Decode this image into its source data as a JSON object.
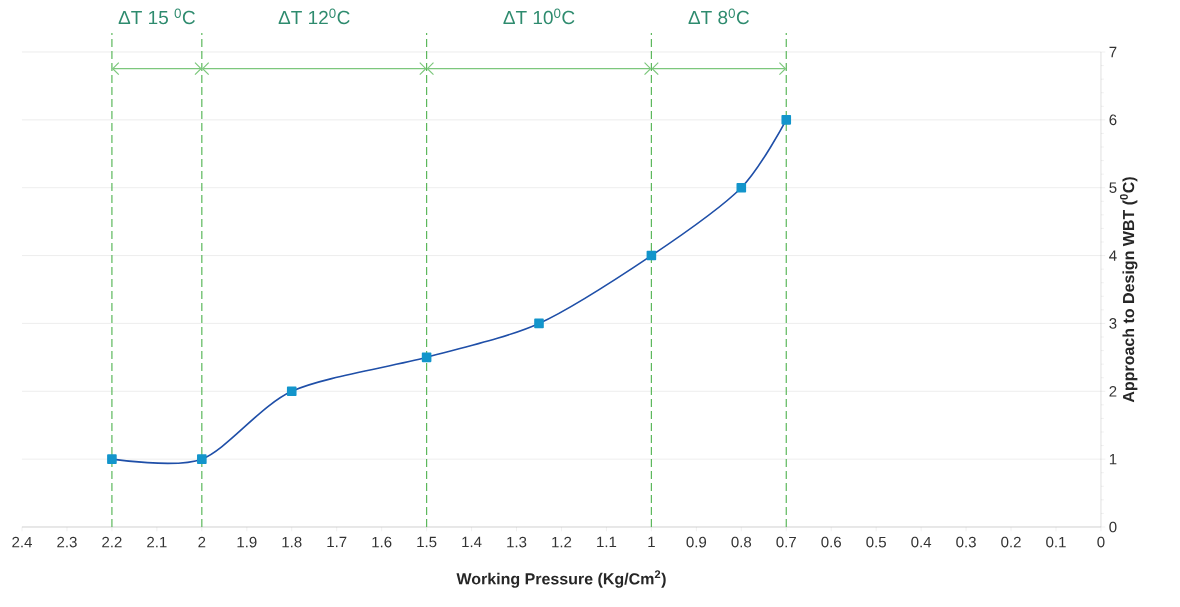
{
  "chart_data": {
    "type": "line",
    "xlabel": "Working Pressure (Kg/Cm$^{2}$)",
    "ylabel": "Approach to Design WBT ($^{0}$C)",
    "series": [
      {
        "x": [
          2.2,
          2.0,
          1.8,
          1.5,
          1.25,
          1.0,
          0.8,
          0.7
        ],
        "values": [
          1,
          1,
          2,
          2.5,
          3,
          4,
          5,
          6
        ],
        "color": "#1f4fa8"
      }
    ],
    "xlim": [
      2.4,
      0
    ],
    "xticks": [
      2.4,
      2.3,
      2.2,
      2.1,
      2,
      1.9,
      1.8,
      1.7,
      1.6,
      1.5,
      1.4,
      1.3,
      1.2,
      1.1,
      1,
      0.9,
      0.8,
      0.7,
      0.6,
      0.5,
      0.4,
      0.3,
      0.2,
      0.1,
      0
    ],
    "ylim": [
      0,
      7
    ],
    "yticks": [
      0,
      1,
      2,
      3,
      4,
      5,
      6,
      7
    ],
    "grid": "y",
    "marker": "square",
    "line_style": "solid",
    "ref_lines": [
      {
        "axis": "x",
        "value": 2.2,
        "color": "#5cb85c",
        "line_style": "dashed"
      },
      {
        "axis": "x",
        "value": 2.0,
        "color": "#5cb85c",
        "line_style": "dashed"
      },
      {
        "axis": "x",
        "value": 1.5,
        "color": "#5cb85c",
        "line_style": "dashed"
      },
      {
        "axis": "x",
        "value": 1.0,
        "color": "#5cb85c",
        "line_style": "dashed"
      },
      {
        "axis": "x",
        "value": 0.7,
        "color": "#5cb85c",
        "line_style": "dashed"
      }
    ],
    "annotations": [
      "ΔT 15 $^{0}$C",
      "ΔT 12$^{0}$C",
      "ΔT 10$^{0}$C",
      "ΔT 8$^{0}$C"
    ]
  }
}
